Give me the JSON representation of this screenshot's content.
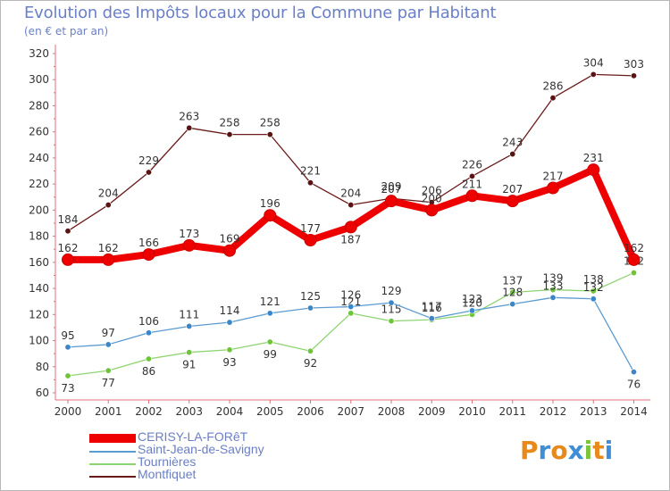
{
  "title": "Evolution des Impôts locaux pour la Commune par Habitant",
  "subtitle": "(en € et par an)",
  "logo_text": "Proxiti",
  "logo_colors": [
    "#e8891c",
    "#3f8fd6",
    "#e8891c",
    "#3f8fd6",
    "#7cc43a",
    "#e8891c",
    "#3f8fd6"
  ],
  "chart_data": {
    "type": "line",
    "title": "Evolution des Impôts locaux pour la Commune par Habitant",
    "subtitle": "(en € et par an)",
    "xlabel": "",
    "ylabel": "",
    "ylim": [
      60,
      320
    ],
    "ytick_step": 20,
    "grid": false,
    "legend_position": "bottom-left",
    "x": [
      "2000",
      "2001",
      "2002",
      "2003",
      "2004",
      "2005",
      "2006",
      "2007",
      "2008",
      "2009",
      "2010",
      "2011",
      "2012",
      "2013",
      "2014"
    ],
    "series": [
      {
        "name": "Montfiquet",
        "color": "#6b1a1a",
        "marker": "#5a1212",
        "values": [
          184,
          204,
          229,
          263,
          258,
          258,
          221,
          204,
          209,
          206,
          226,
          243,
          286,
          304,
          303
        ]
      },
      {
        "name": "Tournières",
        "color": "#8fd472",
        "marker": "#6fc43a",
        "values": [
          73,
          77,
          86,
          91,
          93,
          99,
          92,
          121,
          115,
          116,
          120,
          137,
          139,
          138,
          152
        ]
      },
      {
        "name": "Saint-Jean-de-Savigny",
        "color": "#5b9bd0",
        "marker": "#3a86c8",
        "values": [
          95,
          97,
          106,
          111,
          114,
          121,
          125,
          126,
          129,
          117,
          123,
          128,
          133,
          132,
          76
        ]
      },
      {
        "name": "CERISY-LA-FORêT",
        "color": "#ee0000",
        "marker": "#ee0000",
        "values": [
          162,
          162,
          166,
          173,
          169,
          196,
          177,
          187,
          207,
          200,
          211,
          207,
          217,
          231,
          162
        ]
      }
    ],
    "data_labels": [
      {
        "series": "Montfiquet",
        "labels": [
          "184",
          "204",
          "229",
          "263",
          "258",
          "258",
          "221",
          "204",
          "209",
          "206",
          "226",
          "243",
          "286",
          "304",
          "303"
        ]
      },
      {
        "series": "Tournières",
        "labels": [
          "73",
          "77",
          "86",
          "91",
          "93",
          "99",
          "92",
          "121",
          "115",
          "116",
          "120",
          "137",
          "139",
          "138",
          "152"
        ]
      },
      {
        "series": "Saint-Jean-de-Savigny",
        "labels": [
          "95",
          "97",
          "106",
          "111",
          "114",
          "121",
          "125",
          "126",
          "129",
          "117",
          "123",
          "128",
          "133",
          "132",
          "76"
        ]
      },
      {
        "series": "CERISY-LA-FORêT",
        "labels": [
          "162",
          "162",
          "166",
          "173",
          "169",
          "196",
          "177",
          "187",
          "207",
          "200",
          "211",
          "207",
          "217",
          "231",
          "162"
        ]
      }
    ]
  },
  "legend": [
    {
      "name": "CERISY-LA-FORêT",
      "color": "#ee0000",
      "thick": true
    },
    {
      "name": "Saint-Jean-de-Savigny",
      "color": "#5b9bd0",
      "thick": false
    },
    {
      "name": "Tournières",
      "color": "#8fd472",
      "thick": false
    },
    {
      "name": "Montfiquet",
      "color": "#6b1a1a",
      "thick": false
    }
  ]
}
